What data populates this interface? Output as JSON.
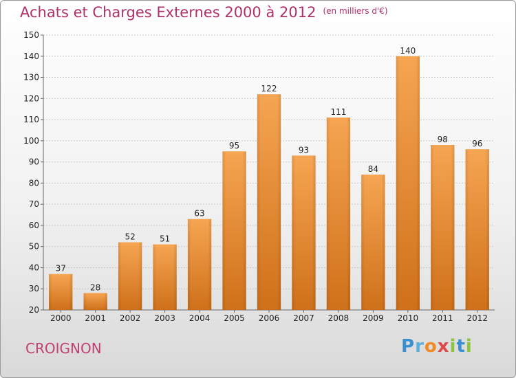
{
  "header": {
    "title": "Achats et Charges Externes 2000 à 2012",
    "unit": "(en milliers d'€)"
  },
  "commune": "CROIGNON",
  "logo": {
    "text": "Proxiti"
  },
  "colors": {
    "bar_top": "#f6a552",
    "bar_bottom": "#cf701a",
    "title": "#b0306a",
    "commune": "#c04074"
  },
  "chart_data": {
    "type": "bar",
    "title": "Achats et Charges Externes 2000 à 2012",
    "subtitle": "(en milliers d'€)",
    "categories": [
      "2000",
      "2001",
      "2002",
      "2003",
      "2004",
      "2005",
      "2006",
      "2007",
      "2008",
      "2009",
      "2010",
      "2011",
      "2012"
    ],
    "values": [
      37,
      28,
      52,
      51,
      63,
      95,
      122,
      93,
      111,
      84,
      140,
      98,
      96
    ],
    "ylim": [
      20,
      150
    ],
    "yticks": [
      20,
      30,
      40,
      50,
      60,
      70,
      80,
      90,
      100,
      110,
      120,
      130,
      140,
      150
    ],
    "xlabel": "",
    "ylabel": "",
    "grid": true,
    "data_labels": true
  }
}
